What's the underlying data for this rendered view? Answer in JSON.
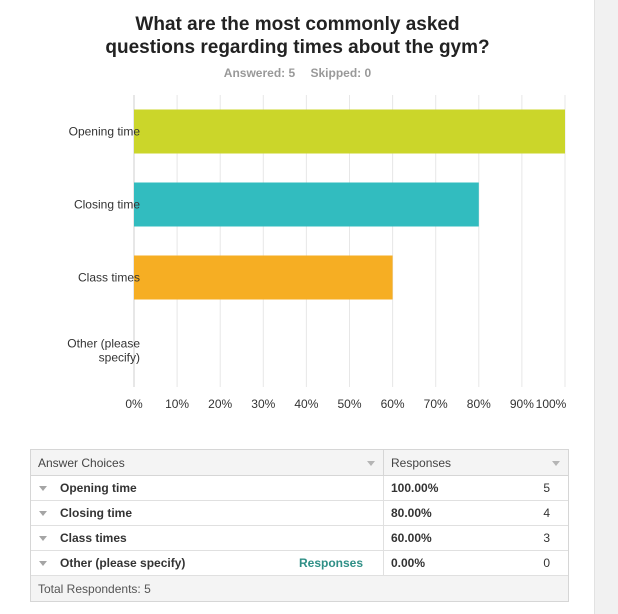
{
  "question": {
    "title_line1": "What are the most commonly asked",
    "title_line2": "questions regarding times about the gym?",
    "answered": "Answered: 5",
    "skipped": "Skipped: 0"
  },
  "colors": {
    "opening": "#cbd62a",
    "closing": "#32bcbf",
    "class": "#f6ae23",
    "grid": "#e7e7e7"
  },
  "chart_data": {
    "type": "bar",
    "orientation": "horizontal",
    "categories": [
      "Opening time",
      "Closing time",
      "Class times",
      "Other (please specify)"
    ],
    "category_label_lines": [
      [
        "Opening time"
      ],
      [
        "Closing time"
      ],
      [
        "Class times"
      ],
      [
        "Other (please",
        "specify)"
      ]
    ],
    "values": [
      100,
      80,
      60,
      0
    ],
    "xlim": [
      0,
      100
    ],
    "xticks": [
      "0%",
      "10%",
      "20%",
      "30%",
      "40%",
      "50%",
      "60%",
      "70%",
      "80%",
      "90%",
      "100%"
    ],
    "grid": true
  },
  "table": {
    "col_choices": "Answer Choices",
    "col_responses": "Responses",
    "rows": [
      {
        "label": "Opening time",
        "percent": "100.00%",
        "count": "5",
        "link": ""
      },
      {
        "label": "Closing time",
        "percent": "80.00%",
        "count": "4",
        "link": ""
      },
      {
        "label": "Class times",
        "percent": "60.00%",
        "count": "3",
        "link": ""
      },
      {
        "label": "Other (please specify)",
        "percent": "0.00%",
        "count": "0",
        "link": "Responses"
      }
    ],
    "total": "Total Respondents: 5"
  }
}
